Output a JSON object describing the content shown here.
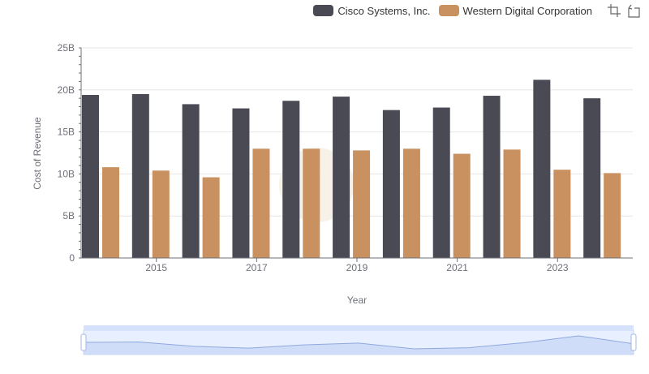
{
  "legend": {
    "items": [
      {
        "name": "Cisco Systems, Inc.",
        "color": "#4a4a55"
      },
      {
        "name": "Western Digital Corporation",
        "color": "#c8915f"
      }
    ]
  },
  "toolbox": {
    "icons": [
      "zoom-icon",
      "zoom-reset-icon"
    ]
  },
  "chart_data": {
    "type": "bar",
    "xlabel": "Year",
    "ylabel": "Cost of Revenue",
    "ylim": [
      0,
      25000000000
    ],
    "yticks": [
      "0",
      "5B",
      "10B",
      "15B",
      "20B",
      "25B"
    ],
    "x_tick_labels": [
      "2015",
      "2017",
      "2019",
      "2021",
      "2023"
    ],
    "categories": [
      "2014",
      "2015",
      "2016",
      "2017",
      "2018",
      "2019",
      "2020",
      "2021",
      "2022",
      "2023",
      "2024"
    ],
    "series": [
      {
        "name": "Cisco Systems, Inc.",
        "color": "#4a4a55",
        "values": [
          19400000000,
          19500000000,
          18300000000,
          17800000000,
          18700000000,
          19200000000,
          17600000000,
          17900000000,
          19300000000,
          21200000000,
          19000000000
        ]
      },
      {
        "name": "Western Digital Corporation",
        "color": "#c8915f",
        "values": [
          10800000000,
          10400000000,
          9600000000,
          13000000000,
          13000000000,
          12800000000,
          13000000000,
          12400000000,
          12900000000,
          10500000000,
          10100000000
        ]
      }
    ],
    "grid": true,
    "legend_position": "top-right",
    "datazoom": {
      "range_percent": [
        0,
        100
      ]
    }
  }
}
